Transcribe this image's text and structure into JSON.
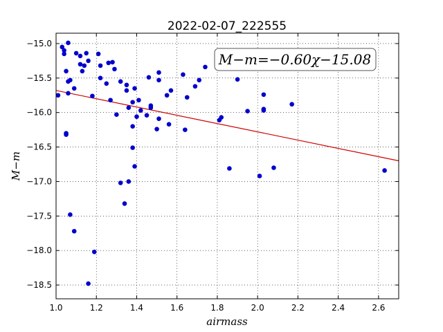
{
  "chart_data": {
    "type": "scatter",
    "title": "2022-02-07_222555",
    "xlabel": "airmass",
    "ylabel": "M−m",
    "xlim": [
      1.0,
      2.7
    ],
    "ylim": [
      -18.7,
      -14.85
    ],
    "y_inverted": true,
    "xticks": [
      1.0,
      1.2,
      1.4,
      1.6,
      1.8,
      2.0,
      2.2,
      2.4,
      2.6
    ],
    "xtick_labels": [
      "1.0",
      "1.2",
      "1.4",
      "1.6",
      "1.8",
      "2.0",
      "2.2",
      "2.4",
      "2.6"
    ],
    "yticks": [
      -15.0,
      -15.5,
      -16.0,
      -16.5,
      -17.0,
      -17.5,
      -18.0,
      -18.5
    ],
    "ytick_labels": [
      "−15.0",
      "−15.5",
      "−16.0",
      "−16.5",
      "−17.0",
      "−17.5",
      "−18.0",
      "−18.5"
    ],
    "grid": true,
    "point_color": "#0000cc",
    "line_color": "#cc0000",
    "fit": {
      "slope": -0.6,
      "intercept": -15.08,
      "label": "M−m=−0.60χ−15.08",
      "placement": "top-right"
    },
    "points": [
      {
        "x": 1.01,
        "y": -15.75
      },
      {
        "x": 1.03,
        "y": -15.05
      },
      {
        "x": 1.04,
        "y": -15.15
      },
      {
        "x": 1.04,
        "y": -15.1
      },
      {
        "x": 1.05,
        "y": -15.4
      },
      {
        "x": 1.05,
        "y": -16.3
      },
      {
        "x": 1.05,
        "y": -16.32
      },
      {
        "x": 1.06,
        "y": -15.55
      },
      {
        "x": 1.06,
        "y": -14.99
      },
      {
        "x": 1.06,
        "y": -15.72
      },
      {
        "x": 1.07,
        "y": -17.48
      },
      {
        "x": 1.07,
        "y": -15.53
      },
      {
        "x": 1.09,
        "y": -15.65
      },
      {
        "x": 1.09,
        "y": -17.72
      },
      {
        "x": 1.1,
        "y": -15.14
      },
      {
        "x": 1.12,
        "y": -15.18
      },
      {
        "x": 1.12,
        "y": -15.3
      },
      {
        "x": 1.13,
        "y": -15.4
      },
      {
        "x": 1.14,
        "y": -15.32
      },
      {
        "x": 1.15,
        "y": -15.14
      },
      {
        "x": 1.16,
        "y": -18.48
      },
      {
        "x": 1.16,
        "y": -15.25
      },
      {
        "x": 1.18,
        "y": -15.76
      },
      {
        "x": 1.19,
        "y": -18.02
      },
      {
        "x": 1.21,
        "y": -15.15
      },
      {
        "x": 1.22,
        "y": -15.32
      },
      {
        "x": 1.22,
        "y": -15.5
      },
      {
        "x": 1.25,
        "y": -15.58
      },
      {
        "x": 1.26,
        "y": -15.28
      },
      {
        "x": 1.27,
        "y": -15.82
      },
      {
        "x": 1.28,
        "y": -15.27
      },
      {
        "x": 1.29,
        "y": -15.37
      },
      {
        "x": 1.3,
        "y": -16.03
      },
      {
        "x": 1.32,
        "y": -15.55
      },
      {
        "x": 1.32,
        "y": -17.02
      },
      {
        "x": 1.34,
        "y": -17.32
      },
      {
        "x": 1.35,
        "y": -15.6
      },
      {
        "x": 1.35,
        "y": -15.68
      },
      {
        "x": 1.36,
        "y": -15.93
      },
      {
        "x": 1.36,
        "y": -17.0
      },
      {
        "x": 1.38,
        "y": -15.85
      },
      {
        "x": 1.38,
        "y": -16.2
      },
      {
        "x": 1.38,
        "y": -16.51
      },
      {
        "x": 1.39,
        "y": -15.65
      },
      {
        "x": 1.39,
        "y": -16.78
      },
      {
        "x": 1.4,
        "y": -16.06
      },
      {
        "x": 1.41,
        "y": -15.82
      },
      {
        "x": 1.42,
        "y": -15.97
      },
      {
        "x": 1.45,
        "y": -16.04
      },
      {
        "x": 1.46,
        "y": -15.49
      },
      {
        "x": 1.47,
        "y": -15.9
      },
      {
        "x": 1.47,
        "y": -15.93
      },
      {
        "x": 1.5,
        "y": -16.24
      },
      {
        "x": 1.51,
        "y": -15.42
      },
      {
        "x": 1.51,
        "y": -15.53
      },
      {
        "x": 1.51,
        "y": -16.09
      },
      {
        "x": 1.55,
        "y": -15.75
      },
      {
        "x": 1.56,
        "y": -16.17
      },
      {
        "x": 1.57,
        "y": -15.68
      },
      {
        "x": 1.63,
        "y": -15.45
      },
      {
        "x": 1.64,
        "y": -16.25
      },
      {
        "x": 1.65,
        "y": -15.78
      },
      {
        "x": 1.69,
        "y": -15.62
      },
      {
        "x": 1.71,
        "y": -15.53
      },
      {
        "x": 1.74,
        "y": -15.34
      },
      {
        "x": 1.81,
        "y": -16.11
      },
      {
        "x": 1.82,
        "y": -16.07
      },
      {
        "x": 1.86,
        "y": -16.81
      },
      {
        "x": 1.9,
        "y": -15.52
      },
      {
        "x": 1.95,
        "y": -15.98
      },
      {
        "x": 2.01,
        "y": -16.92
      },
      {
        "x": 2.03,
        "y": -15.74
      },
      {
        "x": 2.03,
        "y": -15.95
      },
      {
        "x": 2.03,
        "y": -15.97
      },
      {
        "x": 2.08,
        "y": -16.8
      },
      {
        "x": 2.17,
        "y": -15.88
      },
      {
        "x": 2.63,
        "y": -16.84
      }
    ]
  }
}
